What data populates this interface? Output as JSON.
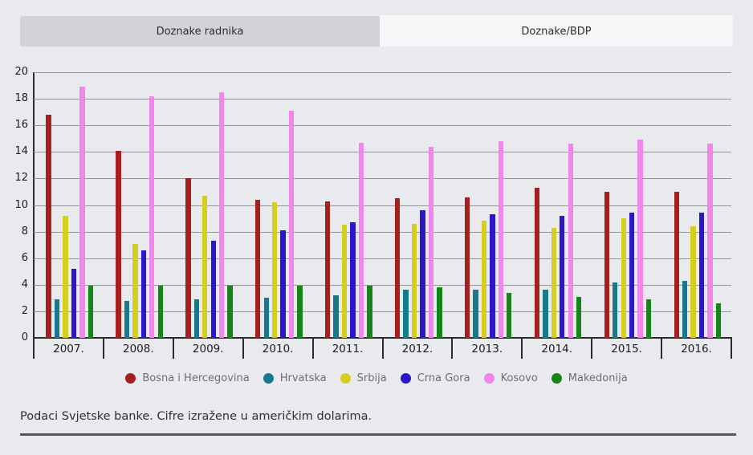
{
  "tabs": [
    {
      "label": "Doznake radnika",
      "active": false
    },
    {
      "label": "Doznake/BDP",
      "active": true
    }
  ],
  "chart_data": {
    "type": "bar",
    "title": "",
    "categories": [
      "2007.",
      "2008.",
      "2009.",
      "2010.",
      "2011.",
      "2012.",
      "2013.",
      "2014.",
      "2015.",
      "2016."
    ],
    "series": [
      {
        "name": "Bosna i Hercegovina",
        "color": "#a61e1e",
        "values": [
          16.8,
          14.1,
          12.0,
          10.4,
          10.3,
          10.5,
          10.6,
          11.3,
          11.0,
          11.0
        ]
      },
      {
        "name": "Hrvatska",
        "color": "#17798c",
        "values": [
          2.9,
          2.8,
          2.9,
          3.0,
          3.2,
          3.6,
          3.6,
          3.6,
          4.2,
          4.3
        ]
      },
      {
        "name": "Srbija",
        "color": "#d6ce1f",
        "values": [
          9.2,
          7.1,
          10.7,
          10.2,
          8.5,
          8.6,
          8.8,
          8.3,
          9.0,
          8.4
        ]
      },
      {
        "name": "Crna Gora",
        "color": "#2b17c8",
        "values": [
          5.2,
          6.6,
          7.3,
          8.1,
          8.7,
          9.6,
          9.3,
          9.2,
          9.4,
          9.4
        ]
      },
      {
        "name": "Kosovo",
        "color": "#f286ec",
        "values": [
          18.9,
          18.2,
          18.5,
          17.1,
          14.7,
          14.4,
          14.8,
          14.6,
          14.9,
          14.6
        ]
      },
      {
        "name": "Makedonija",
        "color": "#148516",
        "values": [
          3.9,
          3.9,
          3.9,
          3.9,
          3.9,
          3.8,
          3.4,
          3.1,
          2.9,
          2.6
        ]
      }
    ],
    "ylim": [
      0,
      20
    ],
    "yticks": [
      0,
      2,
      4,
      6,
      8,
      10,
      12,
      14,
      16,
      18,
      20
    ],
    "grid": true,
    "legend_position": "bottom"
  },
  "footer": {
    "note": "Podaci Svjetske banke. Cifre izražene u američkim dolarima."
  }
}
